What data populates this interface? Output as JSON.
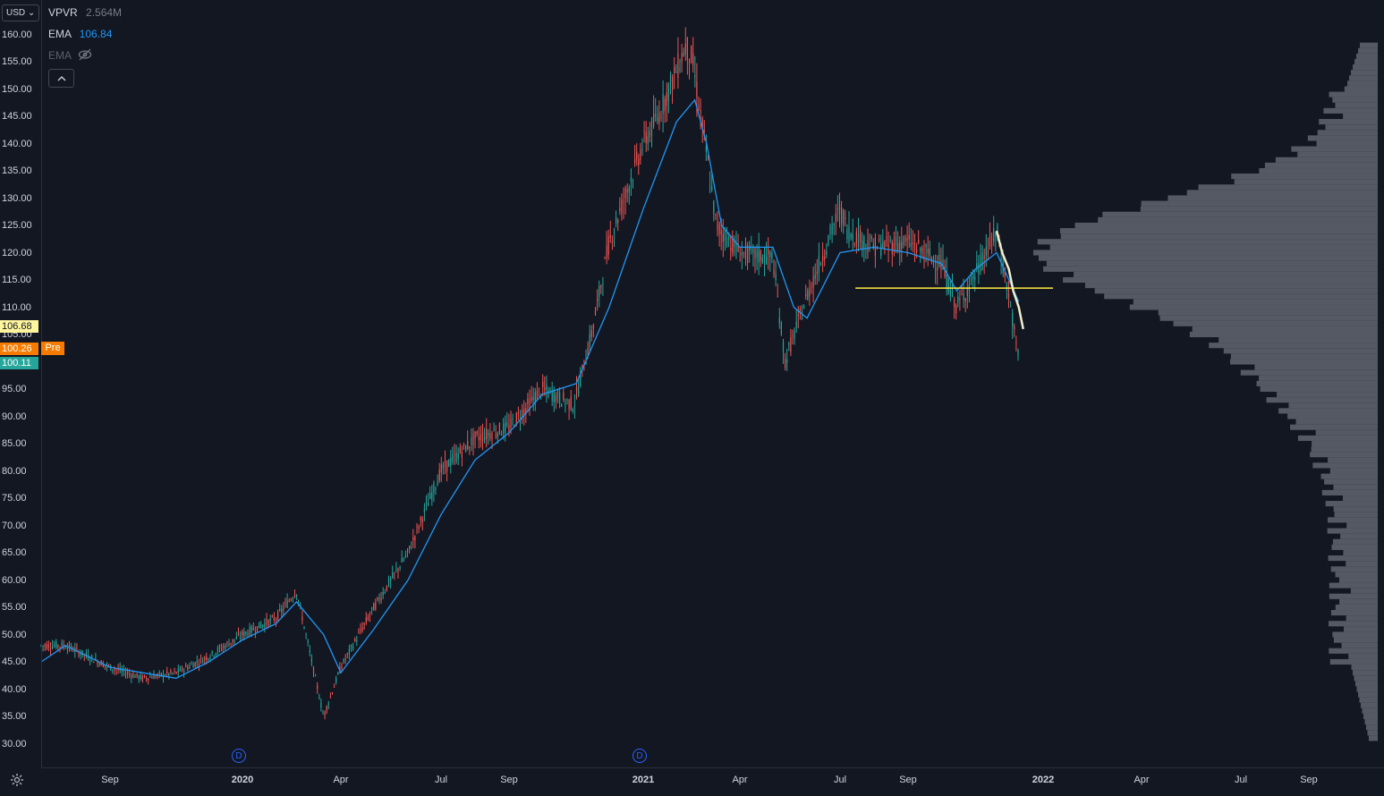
{
  "toolbar": {
    "currency": "USD",
    "currency_caret": "⌄"
  },
  "legend": {
    "vpvr": {
      "name": "VPVR",
      "value": "2.564M",
      "color": "#787b86"
    },
    "ema1": {
      "name": "EMA",
      "value": "106.84",
      "color": "#2196f3"
    },
    "ema2": {
      "name": "EMA",
      "icon": "eye-off-icon"
    },
    "collapse_icon": "chevron-up-icon"
  },
  "price_tags": {
    "ema_value": {
      "text": "106.68",
      "bg": "#fff59d",
      "fg": "#131722"
    },
    "pre_price": {
      "text": "100.26",
      "bg": "#f57c00",
      "fg": "#ffffff"
    },
    "pre_label": "Pre",
    "last_close": {
      "text": "100.11",
      "bg": "#26a69a",
      "fg": "#ffffff"
    }
  },
  "dividend_marker": "D",
  "colors": {
    "background": "#131722",
    "up": "#26a69a",
    "down": "#ef5350",
    "ema": "#2196f3",
    "horizontal_line": "#ffeb3b",
    "volume_profile": "#5d606b"
  },
  "chart_data": {
    "type": "line",
    "y_axis_ticks": [
      "160.00",
      "155.00",
      "150.00",
      "145.00",
      "140.00",
      "135.00",
      "130.00",
      "125.00",
      "120.00",
      "115.00",
      "110.00",
      "105.00",
      "100.00",
      "95.00",
      "90.00",
      "85.00",
      "80.00",
      "75.00",
      "70.00",
      "65.00",
      "60.00",
      "55.00",
      "50.00",
      "45.00",
      "40.00",
      "35.00",
      "30.00"
    ],
    "x_axis_labels": [
      "Sep",
      "2020",
      "Apr",
      "Jul",
      "Sep",
      "2021",
      "Apr",
      "Jul",
      "Sep",
      "2022",
      "Apr",
      "Jul",
      "Sep"
    ],
    "ylim": [
      30,
      160
    ],
    "price_series": {
      "x": [
        "2019-07-15",
        "2019-08-01",
        "2019-09-01",
        "2019-10-01",
        "2019-11-01",
        "2019-12-01",
        "2020-01-01",
        "2020-02-01",
        "2020-02-20",
        "2020-03-16",
        "2020-04-01",
        "2020-05-01",
        "2020-06-01",
        "2020-07-01",
        "2020-08-01",
        "2020-09-01",
        "2020-10-01",
        "2020-10-30",
        "2020-11-15",
        "2020-12-01",
        "2021-01-01",
        "2021-01-15",
        "2021-02-10",
        "2021-02-16",
        "2021-03-01",
        "2021-03-10",
        "2021-04-01",
        "2021-05-01",
        "2021-05-12",
        "2021-06-01",
        "2021-07-01",
        "2021-07-08",
        "2021-08-01",
        "2021-09-01",
        "2021-10-01",
        "2021-10-15",
        "2021-11-01",
        "2021-11-20",
        "2021-12-01",
        "2021-12-10"
      ],
      "y": [
        48,
        48,
        44,
        42,
        43,
        46,
        50,
        53,
        58,
        35,
        44,
        55,
        65,
        80,
        86,
        88,
        95,
        92,
        105,
        122,
        140,
        145,
        158,
        155,
        138,
        125,
        120,
        119,
        100,
        112,
        128,
        124,
        121,
        122,
        118,
        110,
        116,
        124,
        112,
        100
      ]
    },
    "ema_series": {
      "x": [
        "2019-07-15",
        "2019-08-01",
        "2019-09-01",
        "2019-10-01",
        "2019-11-01",
        "2019-12-01",
        "2020-01-01",
        "2020-02-01",
        "2020-02-20",
        "2020-03-16",
        "2020-04-01",
        "2020-05-01",
        "2020-06-01",
        "2020-07-01",
        "2020-08-01",
        "2020-09-01",
        "2020-10-01",
        "2020-11-01",
        "2020-12-01",
        "2021-01-01",
        "2021-02-01",
        "2021-02-18",
        "2021-03-01",
        "2021-03-15",
        "2021-04-01",
        "2021-05-01",
        "2021-05-20",
        "2021-06-01",
        "2021-07-01",
        "2021-08-01",
        "2021-09-01",
        "2021-10-01",
        "2021-10-15",
        "2021-11-01",
        "2021-11-20",
        "2021-12-10"
      ],
      "y": [
        45,
        48,
        44,
        43,
        42,
        45,
        49,
        52,
        56,
        50,
        43,
        51,
        60,
        72,
        82,
        87,
        94,
        96,
        110,
        128,
        144,
        148,
        140,
        125,
        121,
        121,
        110,
        108,
        120,
        121,
        120,
        118,
        113,
        117,
        120,
        111
      ]
    },
    "yellow_line_level": 113.5,
    "yellow_line_x": [
      "2021-07-15",
      "2022-01-10"
    ],
    "highlight_curve": {
      "x": [
        "2021-11-20",
        "2021-11-25",
        "2021-12-01",
        "2021-12-05",
        "2021-12-10",
        "2021-12-14"
      ],
      "y": [
        124,
        120,
        117,
        113,
        110,
        106
      ]
    },
    "legend_placement": "top-left"
  }
}
